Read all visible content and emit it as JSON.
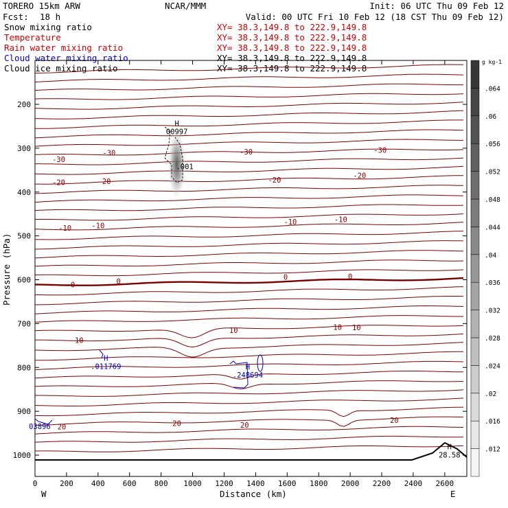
{
  "header": {
    "model_name": "TORERO   15km ARW",
    "center": "NCAR/MMM",
    "init": "Init: 06 UTC Thu 09 Feb 12",
    "fcst_label": "Fcst:",
    "fcst_value": "18 h",
    "valid": "Valid: 00 UTC Fri 10 Feb 12 (18 CST Thu 09 Feb 12)"
  },
  "legend": [
    {
      "label": "Snow mixing ratio",
      "xy": "XY=  38.3,149.8 to 222.9,149.8",
      "color": "#000000",
      "xy_color": "#cc0000"
    },
    {
      "label": "Temperature",
      "xy": "XY=  38.3,149.8 to 222.9,149.8",
      "color": "#cc0000",
      "xy_color": "#cc0000"
    },
    {
      "label": "Rain water mixing ratio",
      "xy": "XY=  38.3,149.8 to 222.9,149.8",
      "color": "#cc0000",
      "xy_color": "#cc0000"
    },
    {
      "label": "Cloud water mixing ratio",
      "xy": "XY=  38.3,149.8 to 222.9,149.8",
      "color": "#0000bb",
      "xy_color": "#000000"
    },
    {
      "label": "Cloud ice mixing ratio",
      "xy": "XY=  38.3,149.8 to 222.9,149.8",
      "color": "#000000",
      "xy_color": "#000000"
    }
  ],
  "chart_data": {
    "type": "cross-section contour",
    "xlabel": "Distance (km)",
    "ylabel": "Pressure (hPa)",
    "x_ticks": [
      0,
      200,
      400,
      600,
      800,
      1000,
      1200,
      1400,
      1600,
      1800,
      2000,
      2200,
      2400,
      2600
    ],
    "xlim": [
      0,
      2740
    ],
    "y_ticks": [
      200,
      300,
      400,
      500,
      600,
      700,
      800,
      900,
      1000
    ],
    "ylim": [
      1025,
      100
    ],
    "left_end_label": "W",
    "right_end_label": "E",
    "colorbar": {
      "unit": "g kg-1",
      "levels": [
        0.012,
        0.016,
        0.02,
        0.024,
        0.028,
        0.032,
        0.036,
        0.04,
        0.044,
        0.048,
        0.052,
        0.056,
        0.06,
        0.064
      ],
      "labels": [
        ".012",
        ".016",
        ".02",
        ".024",
        ".028",
        ".032",
        ".036",
        ".04",
        ".044",
        ".048",
        ".052",
        ".056",
        ".06",
        ".064"
      ]
    },
    "temperature_labels": [
      {
        "text": "-30",
        "x": 150,
        "p": 325
      },
      {
        "text": "-30",
        "x": 470,
        "p": 310
      },
      {
        "text": "-30",
        "x": 1340,
        "p": 308
      },
      {
        "text": "-30",
        "x": 2190,
        "p": 304
      },
      {
        "text": "-20",
        "x": 150,
        "p": 378
      },
      {
        "text": "-20",
        "x": 440,
        "p": 375
      },
      {
        "text": "-20",
        "x": 1520,
        "p": 372
      },
      {
        "text": "-20",
        "x": 2060,
        "p": 362
      },
      {
        "text": "-10",
        "x": 190,
        "p": 482
      },
      {
        "text": "-10",
        "x": 400,
        "p": 476
      },
      {
        "text": "-10",
        "x": 1620,
        "p": 468
      },
      {
        "text": "-10",
        "x": 1940,
        "p": 462
      },
      {
        "text": "0",
        "x": 240,
        "p": 611
      },
      {
        "text": "0",
        "x": 530,
        "p": 603
      },
      {
        "text": "0",
        "x": 1590,
        "p": 594
      },
      {
        "text": "0",
        "x": 2000,
        "p": 592
      },
      {
        "text": "10",
        "x": 280,
        "p": 738
      },
      {
        "text": "10",
        "x": 1260,
        "p": 715
      },
      {
        "text": "10",
        "x": 1920,
        "p": 708
      },
      {
        "text": "10",
        "x": 2040,
        "p": 709
      },
      {
        "text": "20",
        "x": 170,
        "p": 935
      },
      {
        "text": "20",
        "x": 900,
        "p": 927
      },
      {
        "text": "20",
        "x": 1330,
        "p": 931
      },
      {
        "text": "20",
        "x": 2280,
        "p": 920
      }
    ],
    "extrema": [
      {
        "type": "H",
        "value": "00997",
        "field": "snow",
        "x": 900,
        "p": 265
      },
      {
        "type": "",
        "value": ".001",
        "field": "snow",
        "x": 950,
        "p": 345
      },
      {
        "type": "H",
        "value": ".011769",
        "field": "cloud water",
        "x": 450,
        "p": 800
      },
      {
        "type": "H",
        "value": ".248694",
        "field": "cloud water",
        "x": 1350,
        "p": 820
      },
      {
        "type": "",
        "value": "03896",
        "field": "cloud water",
        "x": 30,
        "p": 937
      },
      {
        "type": "H",
        "value": "28.58",
        "field": "snow",
        "x": 2630,
        "p": 1002
      }
    ],
    "snow_shading_max": 0.06
  }
}
